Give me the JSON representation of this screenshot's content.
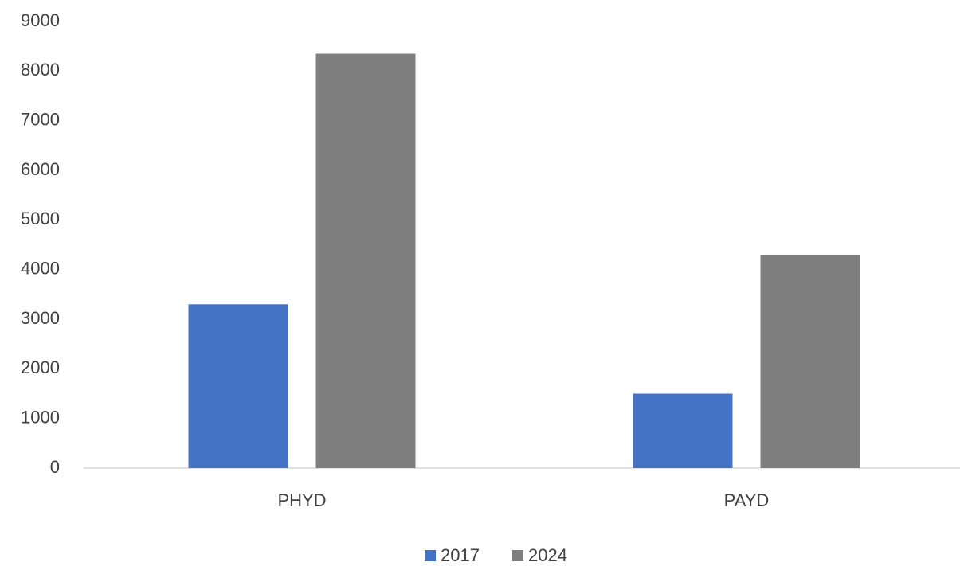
{
  "chart_data": {
    "type": "bar",
    "categories": [
      "PHYD",
      "PAYD"
    ],
    "series": [
      {
        "name": "2017",
        "color": "#4472c4",
        "values": [
          3300,
          1500
        ]
      },
      {
        "name": "2024",
        "color": "#7f7f7f",
        "values": [
          8350,
          4300
        ]
      }
    ],
    "ylim": [
      0,
      9000
    ],
    "yticks": [
      0,
      1000,
      2000,
      3000,
      4000,
      5000,
      6000,
      7000,
      8000,
      9000
    ],
    "grid": false,
    "legend": "bottom"
  }
}
